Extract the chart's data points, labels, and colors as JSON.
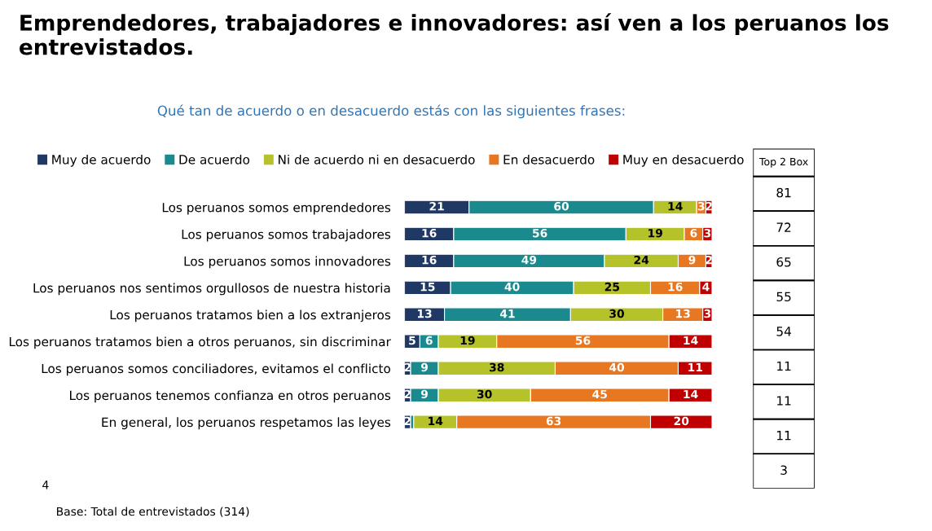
{
  "chart_data": [
    {
      "type": "bar",
      "orientation": "horizontal",
      "stacked": true,
      "legend": "top",
      "title": "Emprendedores, trabajadores e innovadores: así ven a los peruanos los entrevistados.",
      "subtitle": "Qué tan de acuerdo o en desacuerdo estás con las siguientes frases:",
      "annotations": [
        "4",
        "Base: Total de entrevistados (314)"
      ],
      "categories": [
        "Los peruanos somos emprendedores",
        "Los peruanos somos trabajadores",
        "Los peruanos somos innovadores",
        "Los peruanos nos sentimos orgullosos de nuestra historia",
        "Los peruanos tratamos bien a los extranjeros",
        "Los peruanos tratamos bien a otros peruanos, sin discriminar",
        "Los peruanos somos conciliadores, evitamos el conflicto",
        "Los peruanos tenemos confianza en otros peruanos",
        "En general, los peruanos respetamos las leyes"
      ],
      "series": [
        {
          "name": "Muy de acuerdo",
          "color": "#1f3864",
          "values": [
            21,
            16,
            16,
            15,
            13,
            5,
            2,
            2,
            2
          ],
          "value_labels": [
            "21",
            "16",
            "16",
            "15",
            "13",
            "5",
            "2",
            "2",
            "2"
          ]
        },
        {
          "name": "De acuerdo",
          "color": "#1a8a8f",
          "values": [
            60,
            56,
            49,
            40,
            41,
            6,
            9,
            9,
            1
          ],
          "value_labels": [
            "60",
            "56",
            "49",
            "40",
            "41",
            "6",
            "9",
            "9",
            null
          ]
        },
        {
          "name": "Ni de acuerdo ni en desacuerdo",
          "color": "#b5c22a",
          "values": [
            14,
            19,
            24,
            25,
            30,
            19,
            38,
            30,
            14
          ],
          "value_labels": [
            "14",
            "19",
            "24",
            "25",
            "30",
            "19",
            "38",
            "30",
            "14"
          ]
        },
        {
          "name": "En desacuerdo",
          "color": "#e87722",
          "values": [
            3,
            6,
            9,
            16,
            13,
            56,
            40,
            45,
            63
          ],
          "value_labels": [
            "3",
            "6",
            "9",
            "16",
            "13",
            "56",
            "40",
            "45",
            "63"
          ]
        },
        {
          "name": "Muy en desacuerdo",
          "color": "#c00000",
          "values": [
            2,
            3,
            2,
            4,
            3,
            14,
            11,
            14,
            20
          ],
          "value_labels": [
            "2",
            "3",
            "2",
            "4",
            "3",
            "14",
            "11",
            "14",
            "20"
          ]
        }
      ]
    },
    {
      "type": "other",
      "title": "Top 2 Box",
      "annotations": [
        "81",
        "72",
        "65",
        "55",
        "54",
        "11",
        "11",
        "11",
        "3"
      ]
    }
  ]
}
